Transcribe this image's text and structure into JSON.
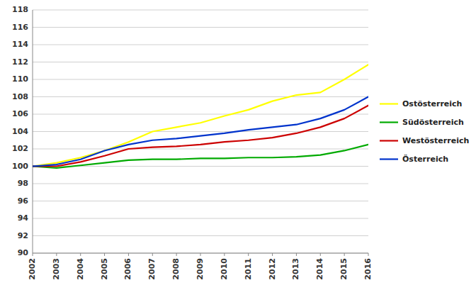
{
  "chart_data": {
    "type": "line",
    "x": [
      2002,
      2003,
      2004,
      2005,
      2006,
      2007,
      2008,
      2009,
      2010,
      2011,
      2012,
      2013,
      2014,
      2015,
      2016
    ],
    "series": [
      {
        "name": "Ostösterreich",
        "color": "#FFFF00",
        "values": [
          100.0,
          100.4,
          101.0,
          101.8,
          102.8,
          104.0,
          104.5,
          105.0,
          105.8,
          106.5,
          107.5,
          108.2,
          108.5,
          110.0,
          111.7
        ]
      },
      {
        "name": "Südösterreich",
        "color": "#00AA00",
        "values": [
          100.0,
          99.8,
          100.1,
          100.4,
          100.7,
          100.8,
          100.8,
          100.9,
          100.9,
          101.0,
          101.0,
          101.1,
          101.3,
          101.8,
          102.5
        ]
      },
      {
        "name": "Westösterreich",
        "color": "#CC0000",
        "values": [
          100.0,
          100.0,
          100.5,
          101.2,
          102.0,
          102.2,
          102.3,
          102.5,
          102.8,
          103.0,
          103.3,
          103.8,
          104.5,
          105.5,
          107.0
        ]
      },
      {
        "name": "Österreich",
        "color": "#0033CC",
        "values": [
          100.0,
          100.2,
          100.8,
          101.8,
          102.5,
          103.0,
          103.2,
          103.5,
          103.8,
          104.2,
          104.5,
          104.8,
          105.5,
          106.5,
          108.0
        ]
      }
    ],
    "xlim": [
      2002,
      2016
    ],
    "xticks": [
      2002,
      2003,
      2004,
      2005,
      2006,
      2007,
      2008,
      2009,
      2010,
      2011,
      2012,
      2013,
      2014,
      2015,
      2016
    ],
    "ylim": [
      90,
      118
    ],
    "yticks": [
      90,
      92,
      94,
      96,
      98,
      100,
      102,
      104,
      106,
      108,
      110,
      112,
      114,
      116,
      118
    ],
    "grid": true,
    "legend": "right"
  }
}
